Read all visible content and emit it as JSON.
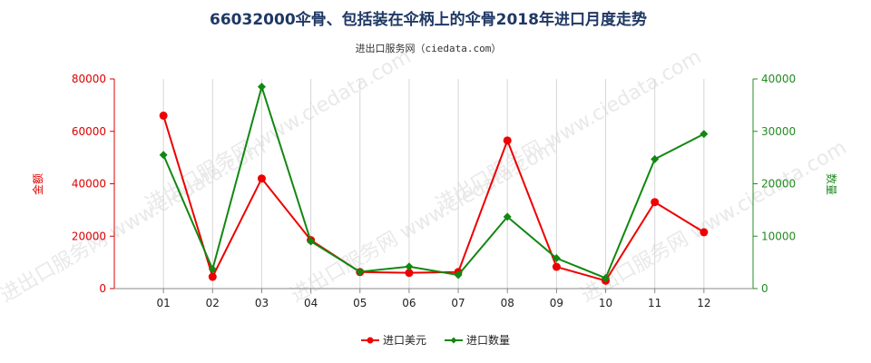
{
  "chart_data": {
    "type": "line",
    "title": "66032000伞骨、包括装在伞柄上的伞骨2018年进口月度走势",
    "subtitle": "进出口服务网（ciedata.com）",
    "watermark": "进出口服务网 www.ciedata.com",
    "categories": [
      "01",
      "02",
      "03",
      "04",
      "05",
      "06",
      "07",
      "08",
      "09",
      "10",
      "11",
      "12"
    ],
    "y_left": {
      "label": "金额",
      "min": 0,
      "max": 80000,
      "ticks": [
        0,
        20000,
        40000,
        60000,
        80000
      ],
      "color": "#dd0000"
    },
    "y_right": {
      "label": "数量",
      "min": 0,
      "max": 40000,
      "ticks": [
        0,
        10000,
        20000,
        30000,
        40000
      ],
      "color": "#228b22"
    },
    "series": [
      {
        "name": "进口美元",
        "axis": "left",
        "color": "#ee0000",
        "values": [
          66000,
          4500,
          42000,
          18500,
          6300,
          6000,
          6300,
          56500,
          8300,
          3000,
          33000,
          21500
        ]
      },
      {
        "name": "进口数量",
        "axis": "right",
        "color": "#118811",
        "values": [
          25500,
          3700,
          38500,
          9000,
          3200,
          4200,
          2600,
          13700,
          5800,
          2000,
          24700,
          29500
        ]
      }
    ],
    "grid": "vertical",
    "legend_position": "bottom-center"
  }
}
